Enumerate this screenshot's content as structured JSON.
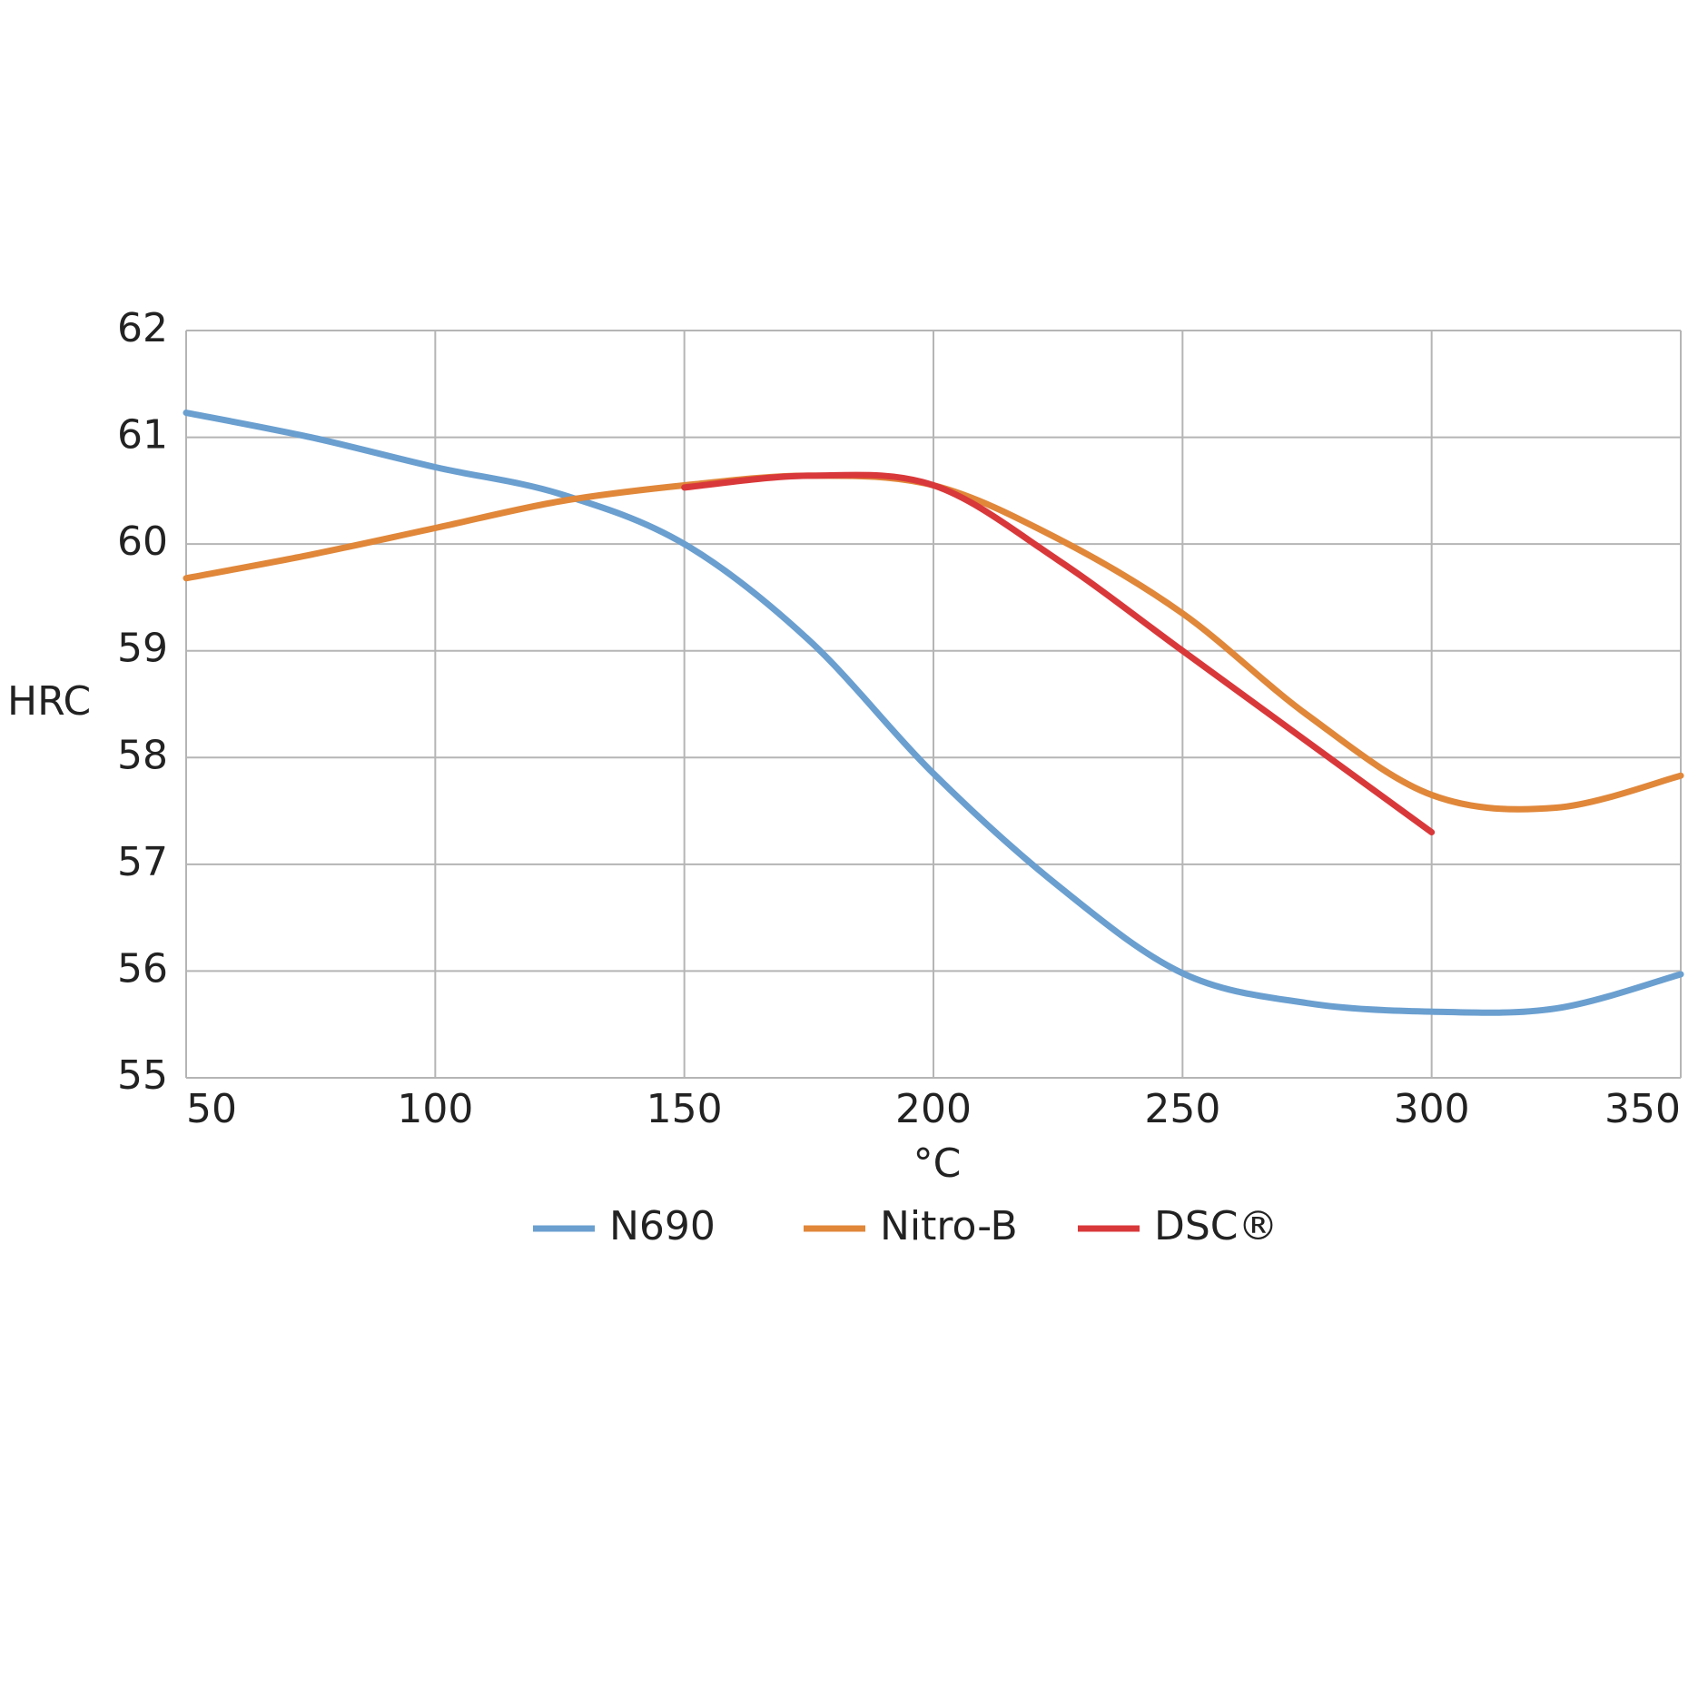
{
  "chart_data": {
    "type": "line",
    "x_label": "°C",
    "y_label": "HRC",
    "x": [
      50,
      75,
      100,
      125,
      150,
      175,
      200,
      225,
      250,
      275,
      300,
      325,
      350
    ],
    "series": [
      {
        "name": "N690",
        "color": "#6a9fd0",
        "values": [
          61.23,
          61.0,
          60.72,
          60.47,
          60.0,
          59.1,
          57.85,
          56.8,
          55.98,
          55.7,
          55.62,
          55.65,
          55.97
        ]
      },
      {
        "name": "Nitro-B",
        "color": "#e0873a",
        "values": [
          59.68,
          59.9,
          60.15,
          60.4,
          60.55,
          60.64,
          60.55,
          60.05,
          59.35,
          58.4,
          57.65,
          57.53,
          57.83
        ]
      },
      {
        "name": "DSC®",
        "color": "#d9383a",
        "values": [
          null,
          null,
          null,
          null,
          60.53,
          60.64,
          60.55,
          59.85,
          59.0,
          58.15,
          57.3,
          null,
          null
        ]
      }
    ],
    "xlim": [
      50,
      350
    ],
    "xticks": [
      50,
      100,
      150,
      200,
      250,
      300,
      350
    ],
    "ylim": [
      55,
      62
    ],
    "yticks": [
      55,
      56,
      57,
      58,
      59,
      60,
      61,
      62
    ],
    "grid": true,
    "legend": "bottom"
  }
}
